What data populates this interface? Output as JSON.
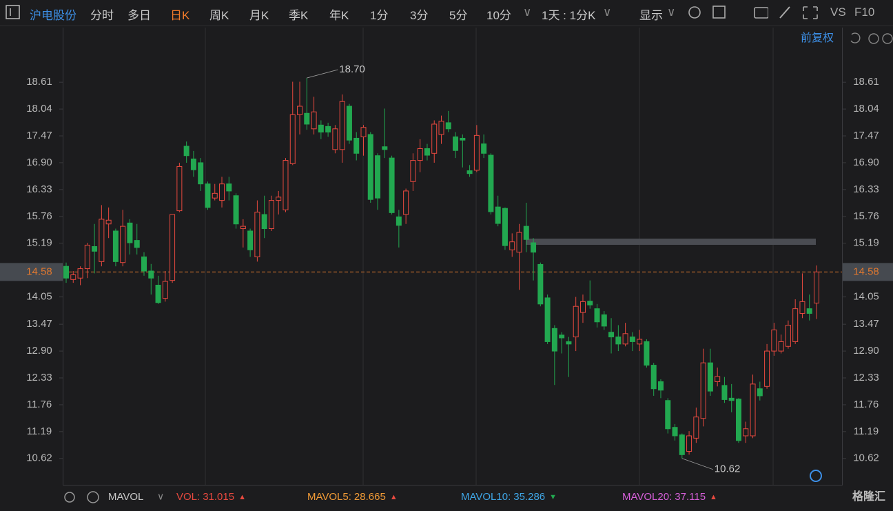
{
  "toolbar": {
    "stock": "沪电股份",
    "periods": [
      "分时",
      "多日",
      "日K",
      "周K",
      "月K",
      "季K",
      "年K",
      "1分",
      "3分",
      "5分",
      "10分"
    ],
    "active": "日K",
    "range": "1天 : 1分K",
    "display": "显示",
    "vs": "VS",
    "f10": "F10",
    "adjust": "前复权"
  },
  "indicator_bar": {
    "name": "MAVOL",
    "items": [
      {
        "name": "VOL:",
        "value": 31.015,
        "arrow": "▲",
        "color": "#e8493f",
        "arrow_color": "#e8493f"
      },
      {
        "name": "MAVOL5:",
        "value": 28.665,
        "arrow": "▲",
        "color": "#f09a36",
        "arrow_color": "#e8493f"
      },
      {
        "name": "MAVOL10:",
        "value": 35.286,
        "arrow": "▼",
        "color": "#3fa6e6",
        "arrow_color": "#22a850"
      },
      {
        "name": "MAVOL20:",
        "value": 37.115,
        "arrow": "▲",
        "color": "#d65fd9",
        "arrow_color": "#e8493f"
      }
    ],
    "brand": "格隆汇"
  },
  "chart_data": {
    "type": "candlestick",
    "up_color": "#e8493f",
    "down_color": "#22a850",
    "ylim": [
      10.06,
      19.77
    ],
    "yticks": [
      18.61,
      18.04,
      17.47,
      {
        "value": 16.9,
        "label": "16.90"
      },
      16.33,
      15.76,
      15.19,
      14.05,
      13.47,
      {
        "value": 12.9,
        "label": "12.90"
      },
      12.33,
      11.76,
      11.19,
      10.62
    ],
    "last_price": {
      "value": 14.58,
      "label": "14.58",
      "color": "#e0782f"
    },
    "annotations": [
      {
        "value": 18.7,
        "label": "18.70",
        "at": "high"
      },
      {
        "value": 10.62,
        "label": "10.62",
        "at": "low"
      }
    ],
    "ohlc": [
      [
        14.7,
        14.78,
        14.35,
        14.45
      ],
      [
        14.42,
        14.6,
        14.35,
        14.52
      ],
      [
        14.45,
        14.7,
        14.3,
        14.65
      ],
      [
        14.65,
        15.2,
        14.45,
        15.15
      ],
      [
        15.12,
        15.6,
        14.55,
        15.02
      ],
      [
        14.8,
        16.0,
        14.7,
        15.7
      ],
      [
        15.6,
        15.95,
        15.3,
        15.68
      ],
      [
        15.45,
        15.5,
        14.7,
        14.8
      ],
      [
        14.78,
        15.9,
        14.7,
        15.55
      ],
      [
        15.62,
        15.7,
        14.95,
        15.2
      ],
      [
        15.25,
        15.6,
        14.95,
        15.1
      ],
      [
        14.9,
        15.0,
        14.5,
        14.6
      ],
      [
        14.6,
        14.75,
        14.1,
        14.45
      ],
      [
        14.3,
        14.5,
        13.9,
        13.93
      ],
      [
        14.02,
        14.6,
        13.95,
        14.38
      ],
      [
        14.4,
        15.8,
        14.35,
        15.8
      ],
      [
        15.88,
        16.9,
        15.85,
        16.82
      ],
      [
        17.25,
        17.35,
        16.9,
        17.05
      ],
      [
        16.98,
        17.15,
        16.6,
        16.75
      ],
      [
        16.9,
        17.0,
        16.3,
        16.45
      ],
      [
        16.45,
        16.5,
        15.9,
        15.95
      ],
      [
        16.15,
        16.45,
        16.1,
        16.25
      ],
      [
        16.1,
        16.6,
        15.95,
        16.45
      ],
      [
        16.45,
        16.6,
        16.1,
        16.3
      ],
      [
        16.2,
        16.25,
        15.5,
        15.6
      ],
      [
        15.5,
        15.7,
        15.1,
        15.55
      ],
      [
        15.45,
        15.5,
        14.9,
        15.05
      ],
      [
        14.9,
        16.1,
        14.8,
        15.85
      ],
      [
        15.8,
        16.2,
        15.3,
        15.5
      ],
      [
        15.5,
        16.2,
        15.45,
        16.1
      ],
      [
        16.1,
        16.3,
        15.8,
        16.17
      ],
      [
        15.9,
        17.0,
        15.85,
        16.95
      ],
      [
        16.88,
        18.62,
        16.85,
        17.92
      ],
      [
        17.92,
        18.62,
        17.5,
        18.1
      ],
      [
        17.95,
        18.7,
        17.6,
        17.72
      ],
      [
        17.62,
        18.3,
        17.5,
        17.98
      ],
      [
        17.7,
        17.8,
        17.4,
        17.55
      ],
      [
        17.67,
        17.75,
        17.45,
        17.55
      ],
      [
        17.18,
        17.7,
        17.1,
        17.62
      ],
      [
        17.18,
        18.35,
        16.9,
        18.2
      ],
      [
        18.1,
        18.15,
        17.3,
        17.38
      ],
      [
        17.42,
        17.55,
        16.95,
        17.1
      ],
      [
        17.45,
        17.7,
        17.05,
        17.65
      ],
      [
        17.5,
        17.55,
        16.05,
        16.12
      ],
      [
        17.05,
        17.1,
        15.9,
        16.15
      ],
      [
        17.24,
        18.05,
        17.0,
        17.18
      ],
      [
        17.0,
        17.05,
        15.8,
        15.84
      ],
      [
        15.75,
        15.9,
        15.1,
        15.57
      ],
      [
        15.8,
        16.35,
        15.6,
        16.3
      ],
      [
        16.5,
        17.1,
        16.3,
        16.95
      ],
      [
        16.95,
        17.4,
        16.7,
        17.2
      ],
      [
        17.2,
        17.3,
        16.95,
        17.06
      ],
      [
        17.1,
        17.8,
        16.9,
        17.72
      ],
      [
        17.5,
        17.9,
        17.3,
        17.78
      ],
      [
        17.75,
        18.0,
        17.55,
        17.62
      ],
      [
        17.45,
        17.55,
        17.0,
        17.16
      ],
      [
        17.42,
        17.5,
        16.8,
        17.38
      ],
      [
        16.73,
        16.85,
        16.6,
        16.67
      ],
      [
        16.74,
        17.7,
        16.7,
        17.48
      ],
      [
        17.3,
        17.5,
        17.0,
        17.1
      ],
      [
        17.06,
        17.1,
        15.8,
        15.86
      ],
      [
        15.96,
        16.2,
        15.55,
        15.61
      ],
      [
        15.93,
        15.95,
        15.05,
        15.14
      ],
      [
        15.05,
        15.4,
        14.9,
        15.22
      ],
      [
        15.0,
        15.6,
        14.2,
        15.42
      ],
      [
        15.55,
        16.05,
        15.0,
        15.27
      ],
      [
        15.2,
        15.3,
        14.4,
        15.0
      ],
      [
        14.74,
        14.78,
        13.85,
        13.9
      ],
      [
        14.03,
        14.1,
        13.05,
        13.1
      ],
      [
        13.38,
        13.45,
        12.18,
        12.9
      ],
      [
        13.24,
        13.3,
        12.85,
        13.18
      ],
      [
        13.1,
        13.2,
        12.35,
        13.05
      ],
      [
        13.2,
        14.05,
        12.9,
        13.85
      ],
      [
        13.72,
        14.1,
        13.5,
        13.95
      ],
      [
        13.96,
        14.4,
        13.8,
        13.88
      ],
      [
        13.8,
        13.9,
        13.4,
        13.52
      ],
      [
        13.67,
        13.75,
        13.35,
        13.43
      ],
      [
        13.3,
        13.6,
        12.85,
        13.2
      ],
      [
        13.2,
        13.45,
        12.9,
        13.05
      ],
      [
        13.05,
        13.5,
        13.0,
        13.27
      ],
      [
        13.2,
        13.3,
        12.9,
        13.1
      ],
      [
        13.05,
        13.35,
        12.9,
        13.15
      ],
      [
        13.1,
        13.15,
        12.55,
        12.6
      ],
      [
        12.6,
        12.65,
        11.95,
        12.1
      ],
      [
        12.25,
        12.3,
        11.9,
        12.07
      ],
      [
        11.85,
        11.9,
        11.15,
        11.25
      ],
      [
        11.28,
        11.35,
        11.0,
        11.1
      ],
      [
        11.12,
        11.15,
        10.62,
        10.7
      ],
      [
        10.77,
        11.2,
        10.7,
        11.1
      ],
      [
        11.05,
        11.7,
        10.95,
        11.5
      ],
      [
        11.47,
        12.95,
        11.3,
        12.65
      ],
      [
        12.65,
        12.95,
        11.95,
        12.05
      ],
      [
        12.25,
        12.55,
        12.15,
        12.36
      ],
      [
        12.17,
        12.35,
        11.8,
        11.87
      ],
      [
        11.9,
        12.2,
        11.6,
        11.85
      ],
      [
        11.88,
        11.9,
        10.95,
        11.0
      ],
      [
        11.1,
        11.4,
        10.95,
        11.25
      ],
      [
        11.1,
        12.4,
        11.05,
        12.2
      ],
      [
        12.1,
        12.25,
        11.85,
        11.95
      ],
      [
        12.15,
        13.05,
        12.1,
        12.9
      ],
      [
        12.9,
        13.5,
        12.8,
        13.35
      ],
      [
        12.9,
        13.25,
        12.85,
        13.1
      ],
      [
        13.0,
        13.55,
        12.95,
        13.45
      ],
      [
        13.1,
        14.0,
        13.05,
        13.8
      ],
      [
        13.7,
        14.55,
        13.6,
        13.95
      ],
      [
        13.8,
        14.1,
        13.55,
        13.7
      ],
      [
        13.92,
        14.72,
        13.58,
        14.58
      ]
    ]
  }
}
